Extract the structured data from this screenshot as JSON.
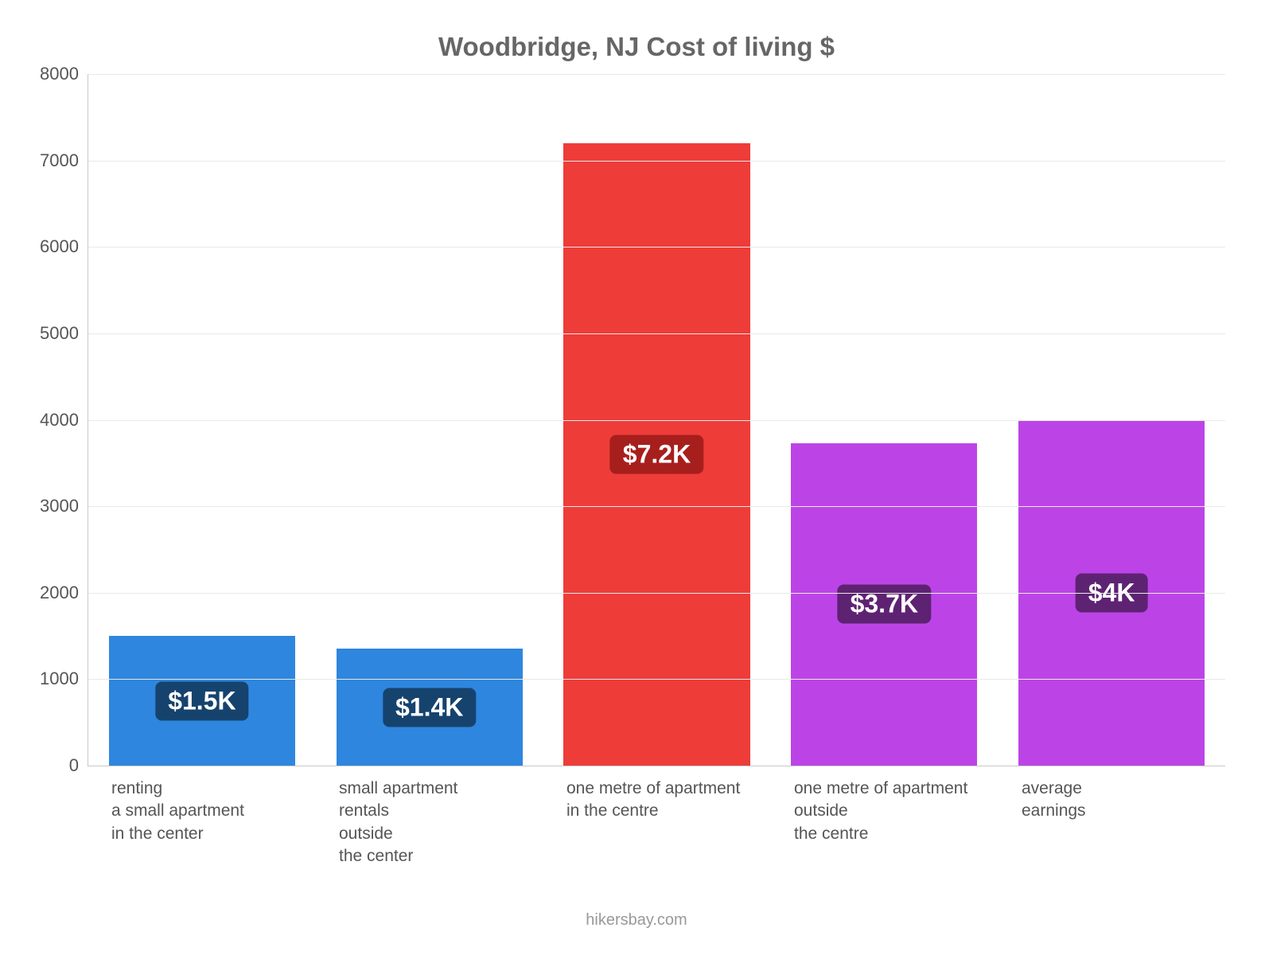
{
  "chart": {
    "type": "bar",
    "title": "Woodbridge, NJ Cost of living $",
    "title_color": "#666666",
    "title_fontsize": 33,
    "background_color": "#ffffff",
    "axis_color": "#c9c9c9",
    "grid_color": "#e9e9e9",
    "tick_label_color": "#555555",
    "tick_label_fontsize": 22,
    "xlabel_fontsize": 21,
    "xlabel_color": "#555555",
    "ylim": [
      0,
      8000
    ],
    "ytick_step": 1000,
    "yticks": [
      0,
      1000,
      2000,
      3000,
      4000,
      5000,
      6000,
      7000,
      8000
    ],
    "bar_width_pct": 82,
    "bars": [
      {
        "label": "renting\na small apartment\nin the center",
        "value": 1500,
        "display": "$1.5K",
        "fill": "#2e86de",
        "badge_bg": "#16436e"
      },
      {
        "label": "small apartment\nrentals\noutside\nthe center",
        "value": 1350,
        "display": "$1.4K",
        "fill": "#2e86de",
        "badge_bg": "#16436e"
      },
      {
        "label": "one metre of apartment\nin the centre",
        "value": 7200,
        "display": "$7.2K",
        "fill": "#ee3c39",
        "badge_bg": "#a71f1d"
      },
      {
        "label": "one metre of apartment\noutside\nthe centre",
        "value": 3730,
        "display": "$3.7K",
        "fill": "#bc44e7",
        "badge_bg": "#5e2273"
      },
      {
        "label": "average\nearnings",
        "value": 4000,
        "display": "$4K",
        "fill": "#bc44e7",
        "badge_bg": "#5e2273"
      }
    ],
    "credit": "hikersbay.com",
    "credit_color": "#999999",
    "credit_fontsize": 20,
    "badge_fontsize": 32,
    "badge_text_color": "#ffffff"
  }
}
